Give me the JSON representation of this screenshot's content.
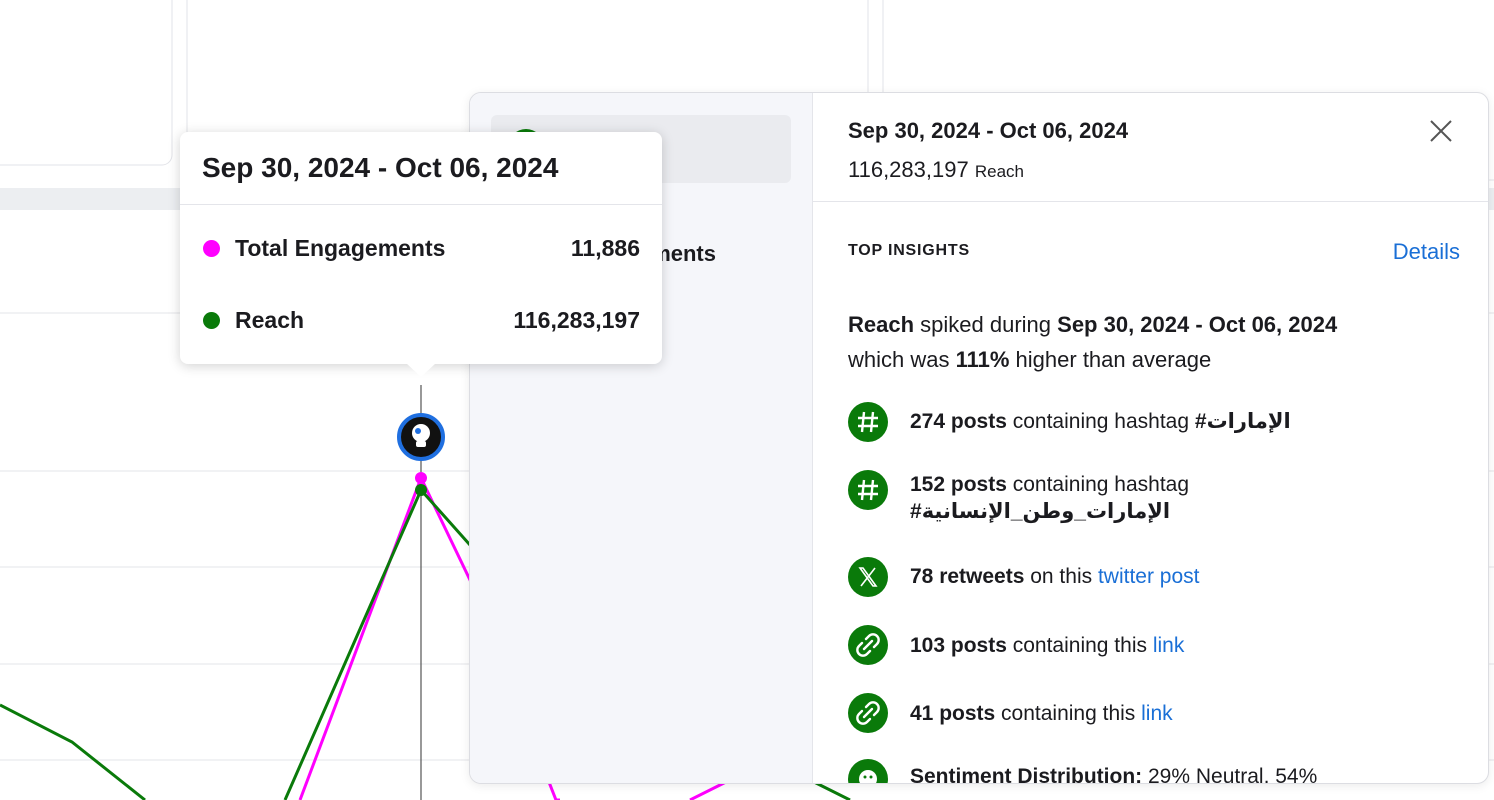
{
  "tooltip": {
    "title": "Sep 30, 2024 - Oct 06, 2024",
    "rows": [
      {
        "name": "Total Engagements",
        "value": "11,886"
      },
      {
        "name": "Reach",
        "value": "116,283,197"
      }
    ]
  },
  "left_panel": {
    "items": [
      "Total Engagements"
    ]
  },
  "panel": {
    "date": "Sep 30, 2024 - Oct 06, 2024",
    "value": "116,283,197",
    "metric": "Reach",
    "section_title": "TOP INSIGHTS",
    "details": "Details",
    "summary": {
      "metric": "Reach",
      "text1": " spiked during ",
      "date": "Sep 30, 2024 - Oct 06, 2024",
      "text2": " which was ",
      "percent": "111%",
      "text3": " higher than average"
    },
    "insights": [
      {
        "bold": "274 posts",
        "text": " containing hashtag ",
        "tag": "#الإمارات"
      },
      {
        "bold": "152 posts",
        "text": " containing hashtag ",
        "tag": "#الإمارات_وطن_الإنسانية"
      },
      {
        "bold": "78 retweets",
        "text": " on this ",
        "link": "twitter post"
      },
      {
        "bold": "103 posts",
        "text": " containing this ",
        "link": "link"
      },
      {
        "bold": "41 posts",
        "text": " containing this ",
        "link": "link"
      },
      {
        "bold": "Sentiment Distribution:",
        "text": " 29% Neutral, 54%"
      }
    ]
  }
}
